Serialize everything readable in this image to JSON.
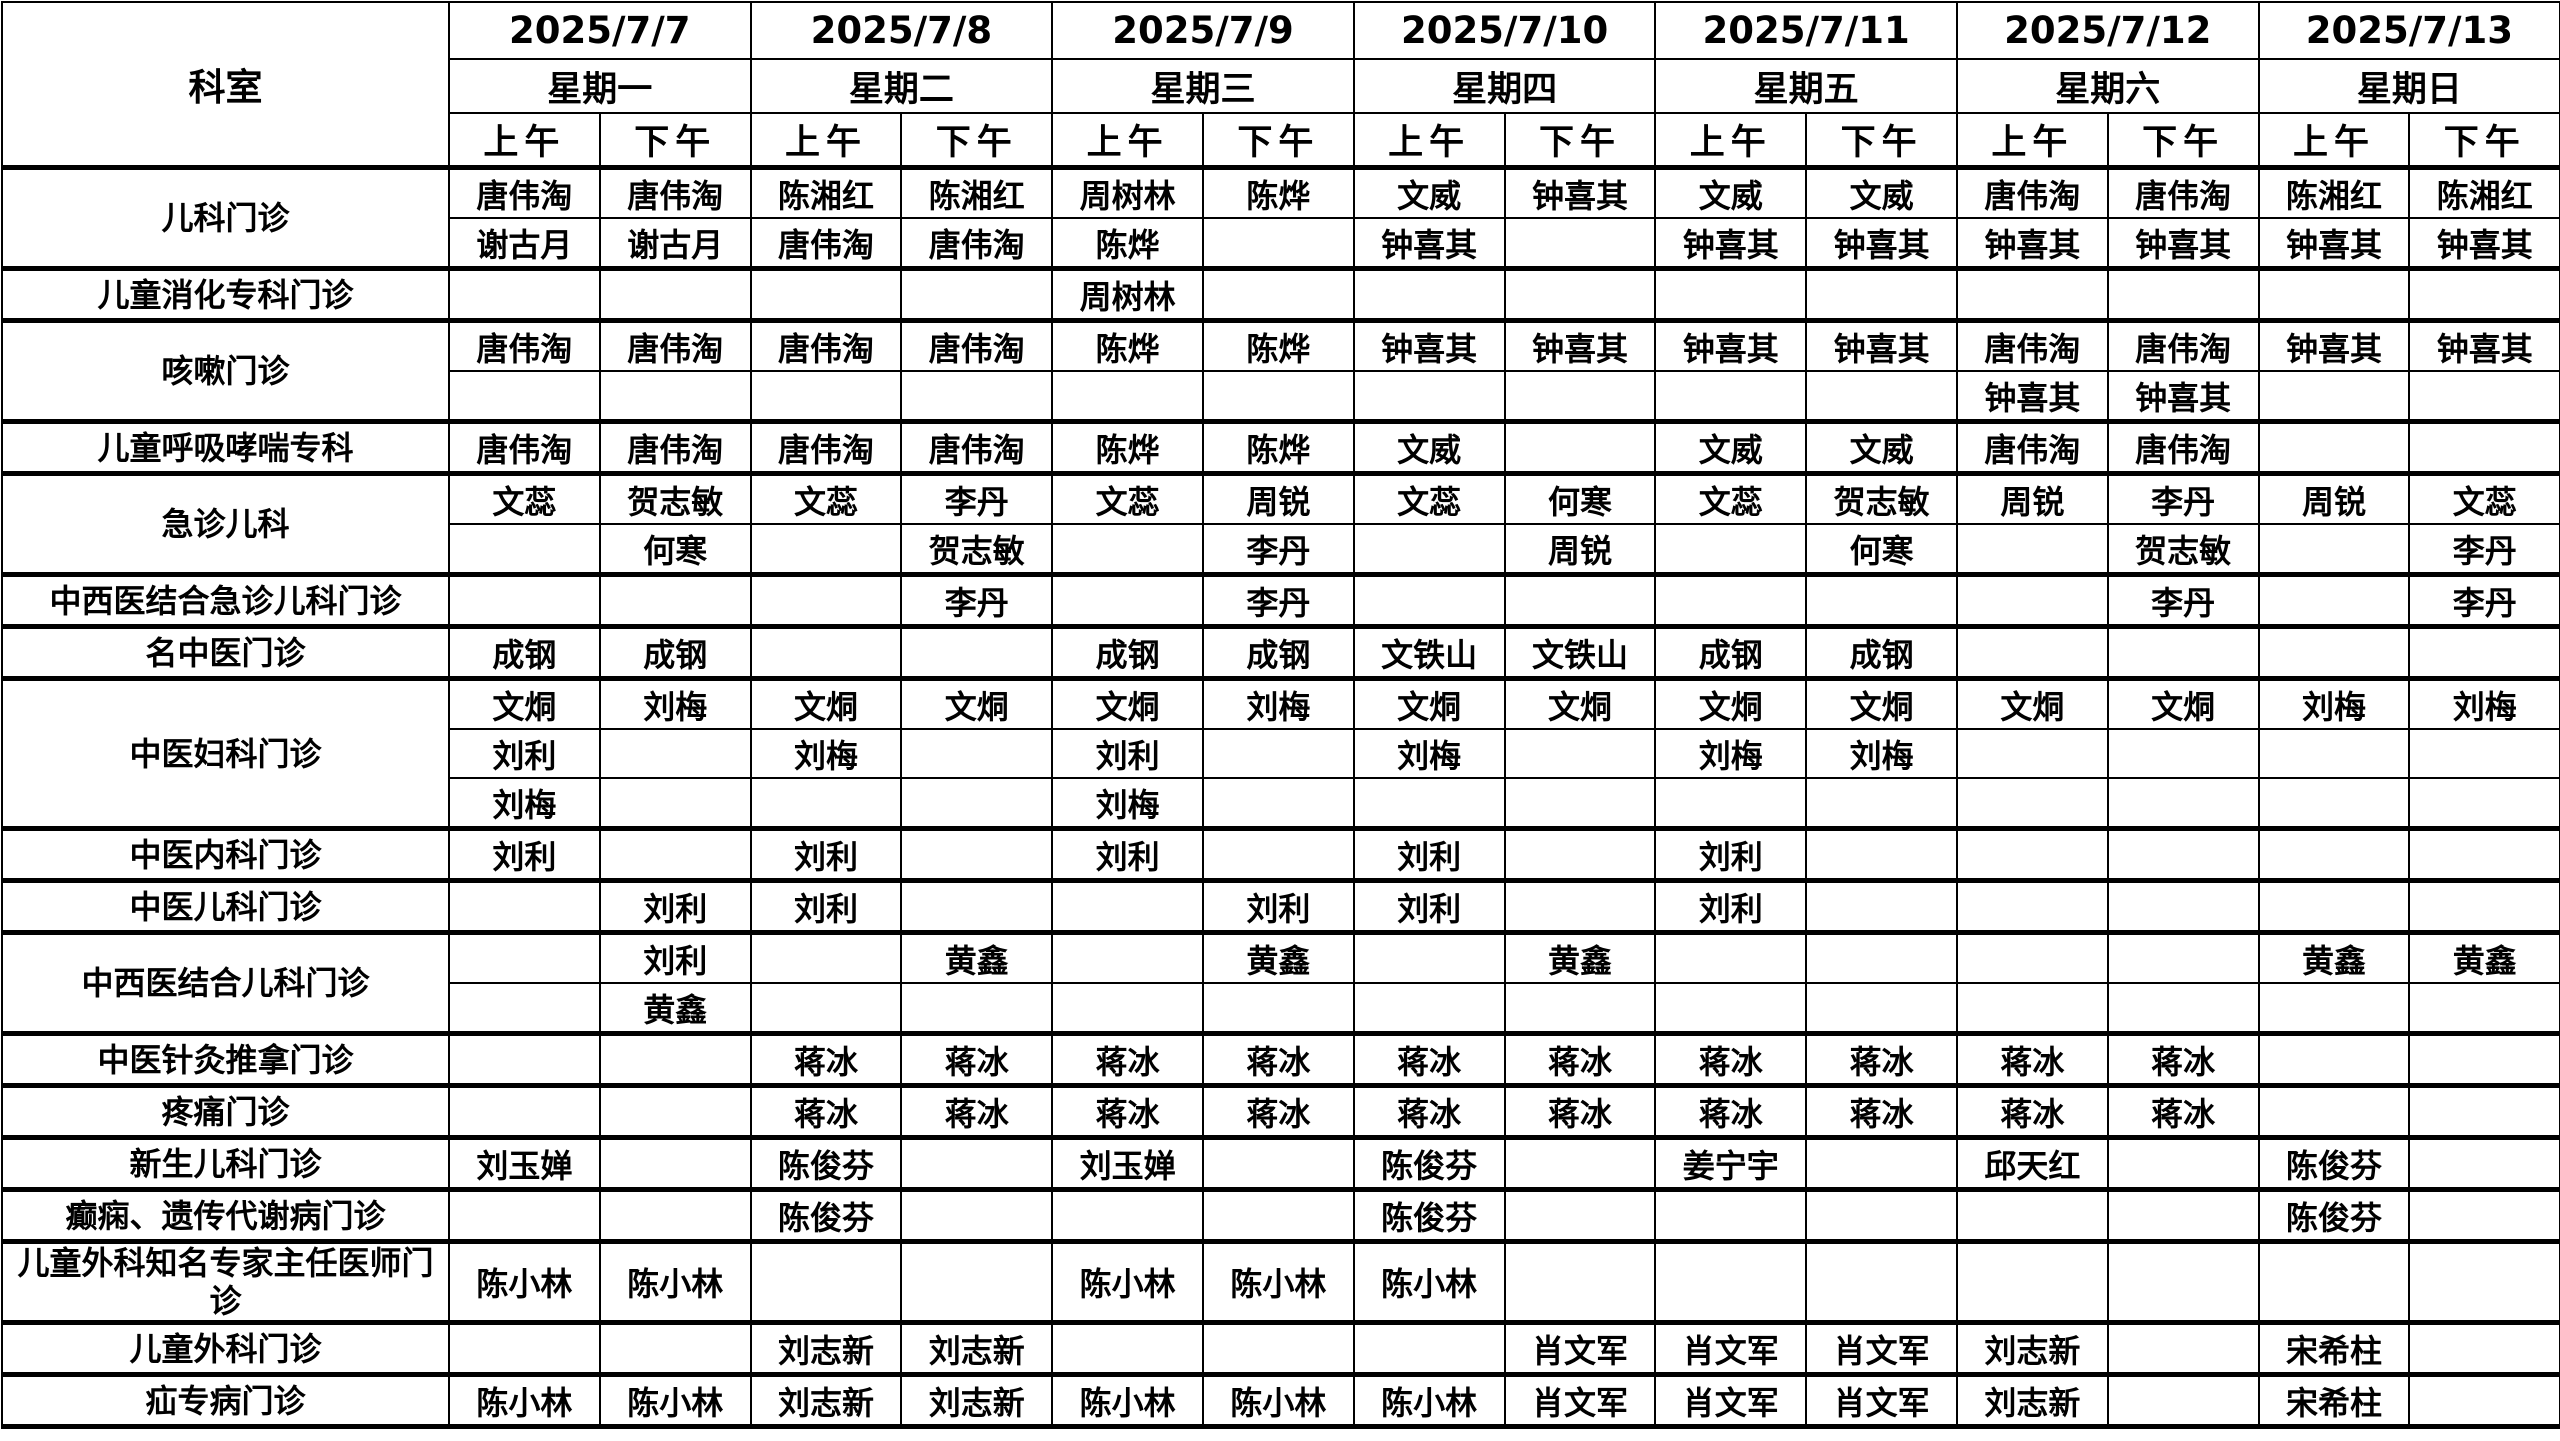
{
  "header": {
    "dept_label": "科室",
    "days": [
      {
        "date": "2025/7/7",
        "weekday": "星期一"
      },
      {
        "date": "2025/7/8",
        "weekday": "星期二"
      },
      {
        "date": "2025/7/9",
        "weekday": "星期三"
      },
      {
        "date": "2025/7/10",
        "weekday": "星期四"
      },
      {
        "date": "2025/7/11",
        "weekday": "星期五"
      },
      {
        "date": "2025/7/12",
        "weekday": "星期六"
      },
      {
        "date": "2025/7/13",
        "weekday": "星期日"
      }
    ],
    "am": "上午",
    "pm": "下午"
  },
  "departments": [
    {
      "name": "儿科门诊",
      "rows": [
        [
          "唐伟淘",
          "唐伟淘",
          "陈湘红",
          "陈湘红",
          "周树林",
          "陈烨",
          "文威",
          "钟喜其",
          "文威",
          "文威",
          "唐伟淘",
          "唐伟淘",
          "陈湘红",
          "陈湘红"
        ],
        [
          "谢古月",
          "谢古月",
          "唐伟淘",
          "唐伟淘",
          "陈烨",
          "",
          "钟喜其",
          "",
          "钟喜其",
          "钟喜其",
          "钟喜其",
          "钟喜其",
          "钟喜其",
          "钟喜其"
        ]
      ]
    },
    {
      "name": "儿童消化专科门诊",
      "rows": [
        [
          "",
          "",
          "",
          "",
          "周树林",
          "",
          "",
          "",
          "",
          "",
          "",
          "",
          "",
          ""
        ]
      ]
    },
    {
      "name": "咳嗽门诊",
      "rows": [
        [
          "唐伟淘",
          "唐伟淘",
          "唐伟淘",
          "唐伟淘",
          "陈烨",
          "陈烨",
          "钟喜其",
          "钟喜其",
          "钟喜其",
          "钟喜其",
          "唐伟淘",
          "唐伟淘",
          "钟喜其",
          "钟喜其"
        ],
        [
          "",
          "",
          "",
          "",
          "",
          "",
          "",
          "",
          "",
          "",
          "钟喜其",
          "钟喜其",
          "",
          ""
        ]
      ]
    },
    {
      "name": "儿童呼吸哮喘专科",
      "rows": [
        [
          "唐伟淘",
          "唐伟淘",
          "唐伟淘",
          "唐伟淘",
          "陈烨",
          "陈烨",
          "文威",
          "",
          "文威",
          "文威",
          "唐伟淘",
          "唐伟淘",
          "",
          ""
        ]
      ]
    },
    {
      "name": "急诊儿科",
      "rows": [
        [
          "文蕊",
          "贺志敏",
          "文蕊",
          "李丹",
          "文蕊",
          "周锐",
          "文蕊",
          "何寒",
          "文蕊",
          "贺志敏",
          "周锐",
          "李丹",
          "周锐",
          "文蕊"
        ],
        [
          "",
          "何寒",
          "",
          "贺志敏",
          "",
          "李丹",
          "",
          "周锐",
          "",
          "何寒",
          "",
          "贺志敏",
          "",
          "李丹"
        ]
      ]
    },
    {
      "name": "中西医结合急诊儿科门诊",
      "rows": [
        [
          "",
          "",
          "",
          "李丹",
          "",
          "李丹",
          "",
          "",
          "",
          "",
          "",
          "李丹",
          "",
          "李丹"
        ]
      ]
    },
    {
      "name": "名中医门诊",
      "rows": [
        [
          "成钢",
          "成钢",
          "",
          "",
          "成钢",
          "成钢",
          "文铁山",
          "文铁山",
          "成钢",
          "成钢",
          "",
          "",
          "",
          ""
        ]
      ]
    },
    {
      "name": "中医妇科门诊",
      "rows": [
        [
          "文烔",
          "刘梅",
          "文烔",
          "文烔",
          "文烔",
          "刘梅",
          "文烔",
          "文烔",
          "文烔",
          "文烔",
          "文烔",
          "文烔",
          "刘梅",
          "刘梅"
        ],
        [
          "刘利",
          "",
          "刘梅",
          "",
          "刘利",
          "",
          "刘梅",
          "",
          "刘梅",
          "刘梅",
          "",
          "",
          "",
          ""
        ],
        [
          "刘梅",
          "",
          "",
          "",
          "刘梅",
          "",
          "",
          "",
          "",
          "",
          "",
          "",
          "",
          ""
        ]
      ]
    },
    {
      "name": "中医内科门诊",
      "rows": [
        [
          "刘利",
          "",
          "刘利",
          "",
          "刘利",
          "",
          "刘利",
          "",
          "刘利",
          "",
          "",
          "",
          "",
          ""
        ]
      ]
    },
    {
      "name": "中医儿科门诊",
      "rows": [
        [
          "",
          "刘利",
          "刘利",
          "",
          "",
          "刘利",
          "刘利",
          "",
          "刘利",
          "",
          "",
          "",
          "",
          ""
        ]
      ]
    },
    {
      "name": "中西医结合儿科门诊",
      "rows": [
        [
          "",
          "刘利",
          "",
          "黄鑫",
          "",
          "黄鑫",
          "",
          "黄鑫",
          "",
          "",
          "",
          "",
          "黄鑫",
          "黄鑫"
        ],
        [
          "",
          "黄鑫",
          "",
          "",
          "",
          "",
          "",
          "",
          "",
          "",
          "",
          "",
          "",
          ""
        ]
      ]
    },
    {
      "name": "中医针灸推拿门诊",
      "rows": [
        [
          "",
          "",
          "蒋冰",
          "蒋冰",
          "蒋冰",
          "蒋冰",
          "蒋冰",
          "蒋冰",
          "蒋冰",
          "蒋冰",
          "蒋冰",
          "蒋冰",
          "",
          ""
        ]
      ]
    },
    {
      "name": "疼痛门诊",
      "rows": [
        [
          "",
          "",
          "蒋冰",
          "蒋冰",
          "蒋冰",
          "蒋冰",
          "蒋冰",
          "蒋冰",
          "蒋冰",
          "蒋冰",
          "蒋冰",
          "蒋冰",
          "",
          ""
        ]
      ]
    },
    {
      "name": "新生儿科门诊",
      "rows": [
        [
          "刘玉婵",
          "",
          "陈俊芬",
          "",
          "刘玉婵",
          "",
          "陈俊芬",
          "",
          "姜宁宇",
          "",
          "邱天红",
          "",
          "陈俊芬",
          ""
        ]
      ]
    },
    {
      "name": "癫痫、遗传代谢病门诊",
      "rows": [
        [
          "",
          "",
          "陈俊芬",
          "",
          "",
          "",
          "陈俊芬",
          "",
          "",
          "",
          "",
          "",
          "陈俊芬",
          ""
        ]
      ]
    },
    {
      "name": "儿童外科知名专家主任医师门诊",
      "tall": true,
      "rows": [
        [
          "陈小林",
          "陈小林",
          "",
          "",
          "陈小林",
          "陈小林",
          "陈小林",
          "",
          "",
          "",
          "",
          "",
          "",
          ""
        ]
      ]
    },
    {
      "name": "儿童外科门诊",
      "rows": [
        [
          "",
          "",
          "刘志新",
          "刘志新",
          "",
          "",
          "",
          "肖文军",
          "肖文军",
          "肖文军",
          "刘志新",
          "",
          "宋希柱",
          ""
        ]
      ]
    },
    {
      "name": "疝专病门诊",
      "rows": [
        [
          "陈小林",
          "陈小林",
          "刘志新",
          "刘志新",
          "陈小林",
          "陈小林",
          "陈小林",
          "肖文军",
          "肖文军",
          "肖文军",
          "刘志新",
          "",
          "宋希柱",
          ""
        ]
      ]
    }
  ]
}
